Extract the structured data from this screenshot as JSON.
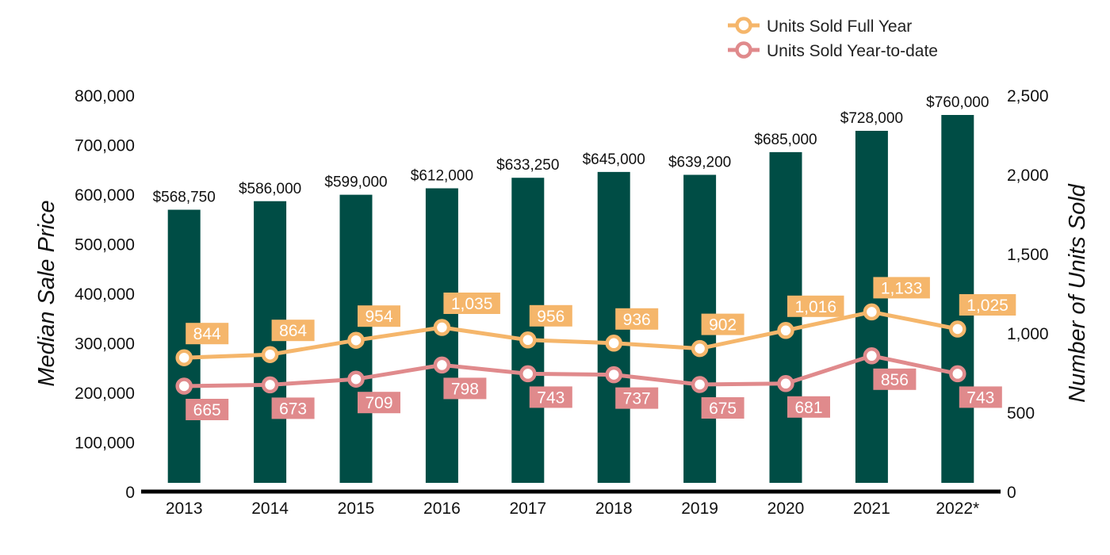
{
  "chart_data": {
    "type": "bar",
    "title": "",
    "categories": [
      "2013",
      "2014",
      "2015",
      "2016",
      "2017",
      "2018",
      "2019",
      "2020",
      "2021",
      "2022*"
    ],
    "ylabel": "Median Sale Price",
    "y2label": "Number of Units Sold",
    "ylim": [
      0,
      800000
    ],
    "y2lim": [
      0,
      2500
    ],
    "yticks": [
      "0",
      "100,000",
      "200,000",
      "300,000",
      "400,000",
      "500,000",
      "600,000",
      "700,000",
      "800,000"
    ],
    "y2ticks": [
      "0",
      "500",
      "1,000",
      "1,500",
      "2,000",
      "2,500"
    ],
    "legend_position": "top-right",
    "grid": false,
    "bars": {
      "name": "",
      "color": "#004d45",
      "values": [
        568750,
        586000,
        599000,
        612000,
        633250,
        645000,
        639200,
        685000,
        728000,
        760000
      ],
      "labels": [
        "$568,750",
        "$586,000",
        "$599,000",
        "$612,000",
        "$633,250",
        "$645,000",
        "$639,200",
        "$685,000",
        "$728,000",
        "$760,000"
      ]
    },
    "series": [
      {
        "name": "Units Sold Full Year",
        "type": "line",
        "axis": "right",
        "color": "#f5b66b",
        "values": [
          844,
          864,
          954,
          1035,
          956,
          936,
          902,
          1016,
          1133,
          1025
        ],
        "labels": [
          "844",
          "864",
          "954",
          "1,035",
          "956",
          "936",
          "902",
          "1,016",
          "1,133",
          "1,025"
        ]
      },
      {
        "name": "Units Sold Year-to-date",
        "type": "line",
        "axis": "right",
        "color": "#e08a8c",
        "values": [
          665,
          673,
          709,
          798,
          743,
          737,
          675,
          681,
          856,
          743
        ],
        "labels": [
          "665",
          "673",
          "709",
          "798",
          "743",
          "737",
          "675",
          "681",
          "856",
          "743"
        ]
      }
    ]
  }
}
